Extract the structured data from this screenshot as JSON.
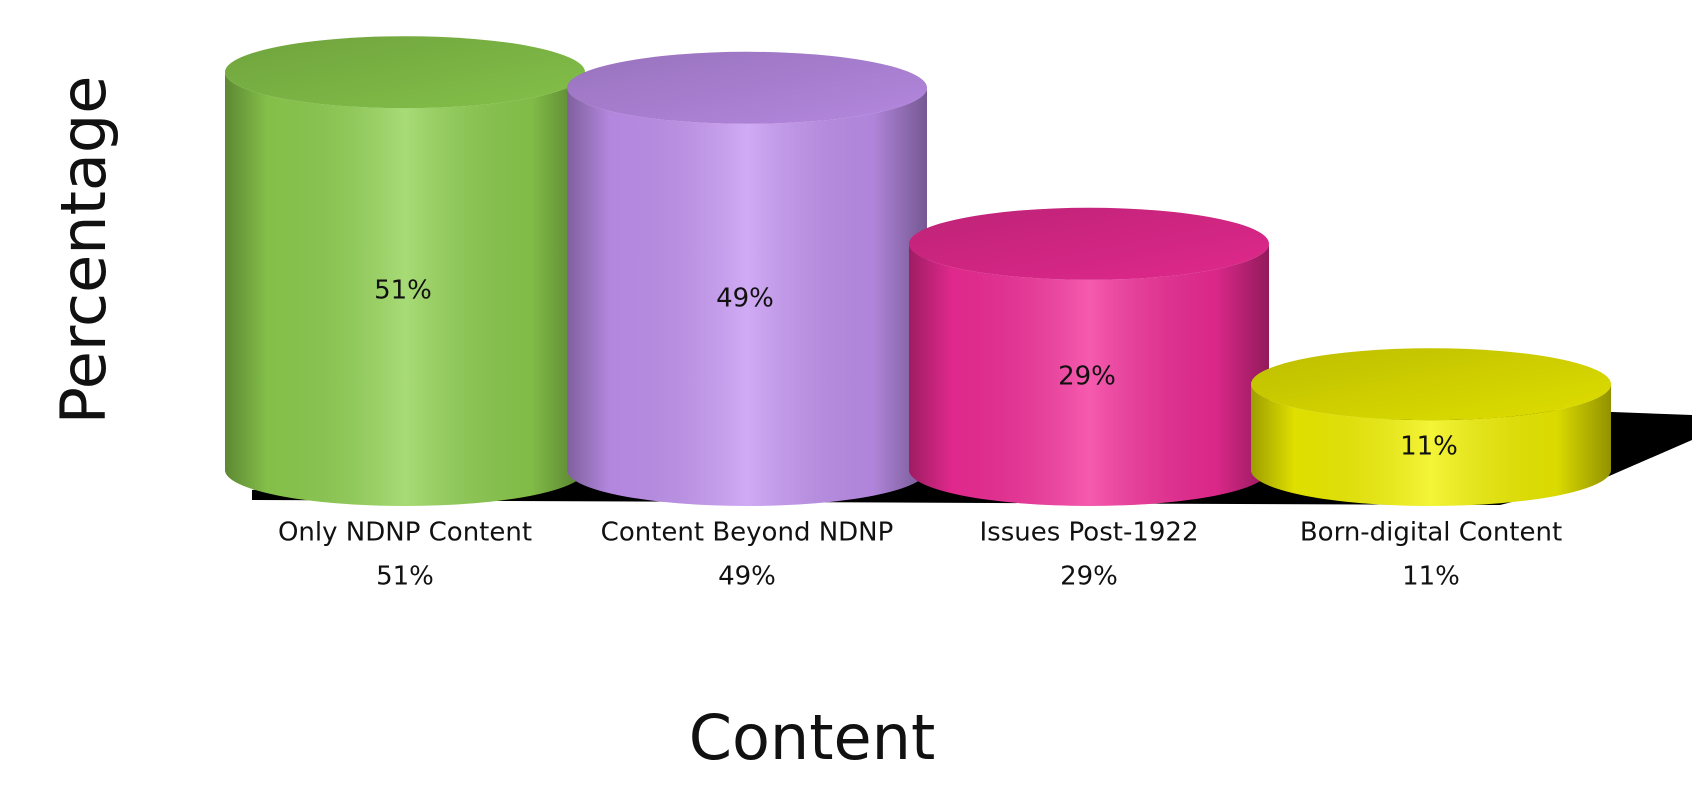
{
  "chart_data": {
    "type": "cylinder",
    "x_label": "Content",
    "y_label": "Percentage",
    "categories": [
      "Only NDNP Content",
      "Content Beyond NDNP",
      "Issues Post-1922",
      "Born-digital Content"
    ],
    "values": [
      51,
      49,
      29,
      11
    ],
    "value_labels": [
      "51%",
      "49%",
      "29%",
      "11%"
    ],
    "colors": [
      "#8fd14f",
      "#c393f2",
      "#f32c98",
      "#f2f200"
    ]
  }
}
